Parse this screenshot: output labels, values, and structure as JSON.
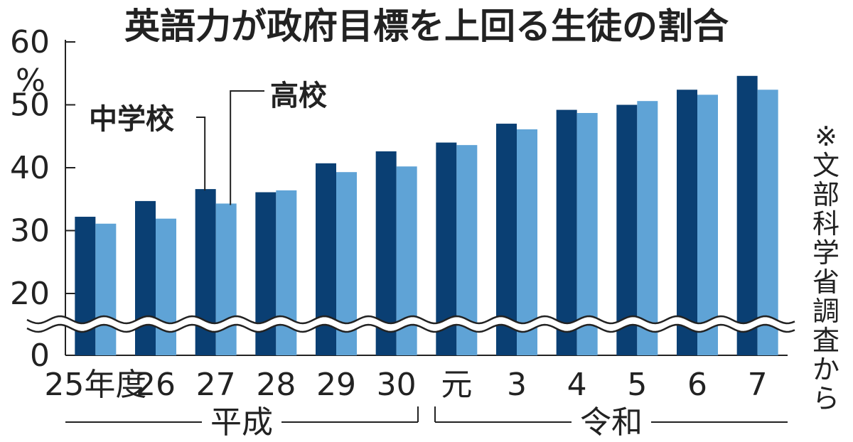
{
  "chart_data": {
    "type": "bar",
    "title": "英語力が政府目標を上回る生徒の割合",
    "unit": "%",
    "y_tick_labels": [
      "0",
      "20",
      "30",
      "40",
      "50",
      "60"
    ],
    "ylim": [
      0,
      60
    ],
    "axis_break": "0〜20",
    "categories": [
      "25年度",
      "26",
      "27",
      "28",
      "29",
      "30",
      "元",
      "3",
      "4",
      "5",
      "6",
      "7"
    ],
    "eras": [
      {
        "label": "平成",
        "categories": [
          "25年度",
          "26",
          "27",
          "28",
          "29",
          "30"
        ]
      },
      {
        "label": "令和",
        "categories": [
          "元",
          "3",
          "4",
          "5",
          "6",
          "7"
        ]
      }
    ],
    "series": [
      {
        "name": "中学校",
        "color": "#0a3f73",
        "values": [
          32.2,
          34.7,
          36.6,
          36.1,
          40.7,
          42.6,
          44.0,
          47.0,
          49.2,
          50.0,
          52.4,
          54.6
        ]
      },
      {
        "name": "高校",
        "color": "#5fa3d6",
        "values": [
          31.1,
          31.9,
          34.3,
          36.4,
          39.3,
          40.2,
          43.6,
          46.1,
          48.7,
          50.6,
          51.6,
          52.4
        ]
      }
    ],
    "source": "※文部科学省調査から",
    "legend": "annotation-labels"
  }
}
